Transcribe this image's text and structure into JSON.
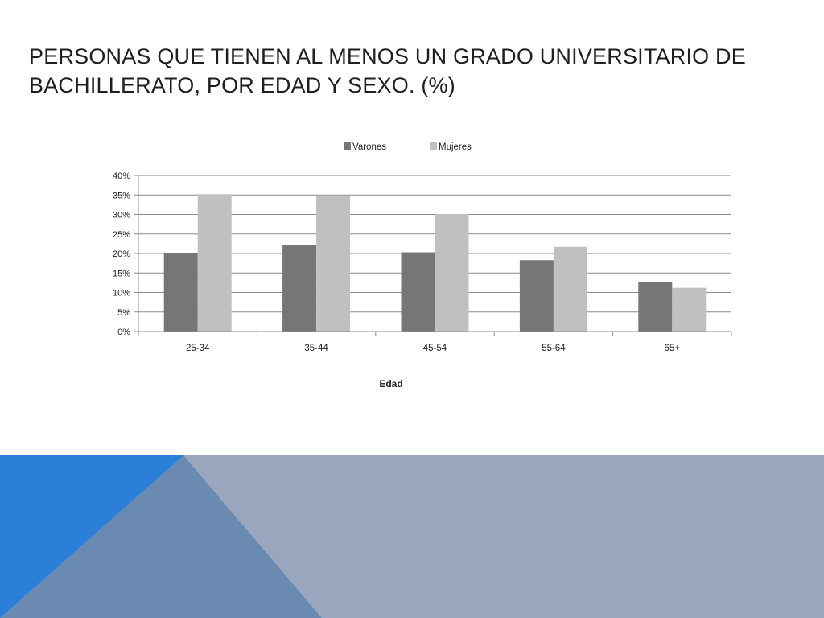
{
  "slide": {
    "title": "PERSONAS QUE TIENEN AL MENOS UN GRADO UNIVERSITARIO DE BACHILLERATO, POR EDAD Y SEXO. (%)"
  },
  "colors": {
    "varones": "#767676",
    "mujeres": "#c0c0c0",
    "gridline": "#8c8c8c",
    "band_blue": "#2b7fd8",
    "band_slate": "#6b8ab2",
    "band_gray": "#99a6bd"
  },
  "chart_data": {
    "type": "bar",
    "title": "",
    "xlabel": "Edad",
    "ylabel": "",
    "categories": [
      "25-34",
      "35-44",
      "45-54",
      "55-64",
      "65+"
    ],
    "series": [
      {
        "name": "Varones",
        "values": [
          20,
          22.2,
          20.3,
          18.3,
          12.6
        ]
      },
      {
        "name": "Mujeres",
        "values": [
          35.2,
          34.9,
          30.1,
          21.7,
          11.2
        ]
      }
    ],
    "ylim": [
      0,
      40
    ],
    "yticks": [
      0,
      5,
      10,
      15,
      20,
      25,
      30,
      35,
      40
    ],
    "ytick_labels": [
      "0%",
      "5%",
      "10%",
      "15%",
      "20%",
      "25%",
      "30%",
      "35%",
      "40%"
    ],
    "grid": true,
    "legend_position": "top"
  }
}
